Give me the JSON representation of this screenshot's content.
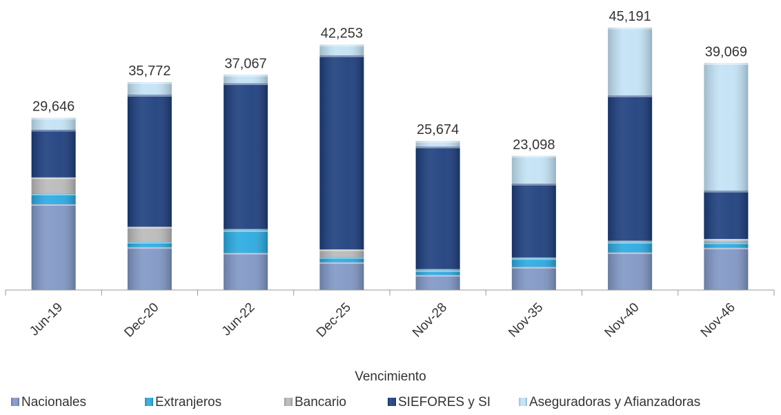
{
  "chart_data": {
    "type": "bar",
    "stacked": true,
    "categories": [
      "Jun-19",
      "Dec-20",
      "Jun-22",
      "Dec-25",
      "Nov-28",
      "Nov-35",
      "Nov-40",
      "Nov-46"
    ],
    "totals": [
      29646,
      35772,
      37067,
      42253,
      25674,
      23098,
      45191,
      39069
    ],
    "total_labels": [
      "29,646",
      "35,772",
      "37,067",
      "42,253",
      "25,674",
      "23,098",
      "45,191",
      "39,069"
    ],
    "series": [
      {
        "name": "Nacionales",
        "color": "#7f96c4",
        "values": [
          14800,
          7400,
          6400,
          4800,
          2600,
          4000,
          6500,
          7300
        ]
      },
      {
        "name": "Extranjeros",
        "color": "#29a9e0",
        "values": [
          1800,
          900,
          3900,
          900,
          800,
          1500,
          1800,
          900
        ]
      },
      {
        "name": "Bancario",
        "color": "#b9b9b9",
        "values": [
          2800,
          2600,
          200,
          1300,
          200,
          100,
          200,
          600
        ]
      },
      {
        "name": "SIEFORES y SI",
        "color": "#1c3e7d",
        "values": [
          8200,
          22700,
          25100,
          33400,
          21100,
          12700,
          25000,
          8300
        ]
      },
      {
        "name": "Aseguradoras y Afianzadoras",
        "color": "#c2e2f5",
        "values": [
          2046,
          2172,
          1467,
          1853,
          974,
          4798,
          11691,
          21969
        ]
      }
    ],
    "xlabel": "Vencimiento",
    "ylabel": "",
    "ylim": [
      0,
      45191
    ],
    "grid": false,
    "legend_position": "bottom"
  }
}
